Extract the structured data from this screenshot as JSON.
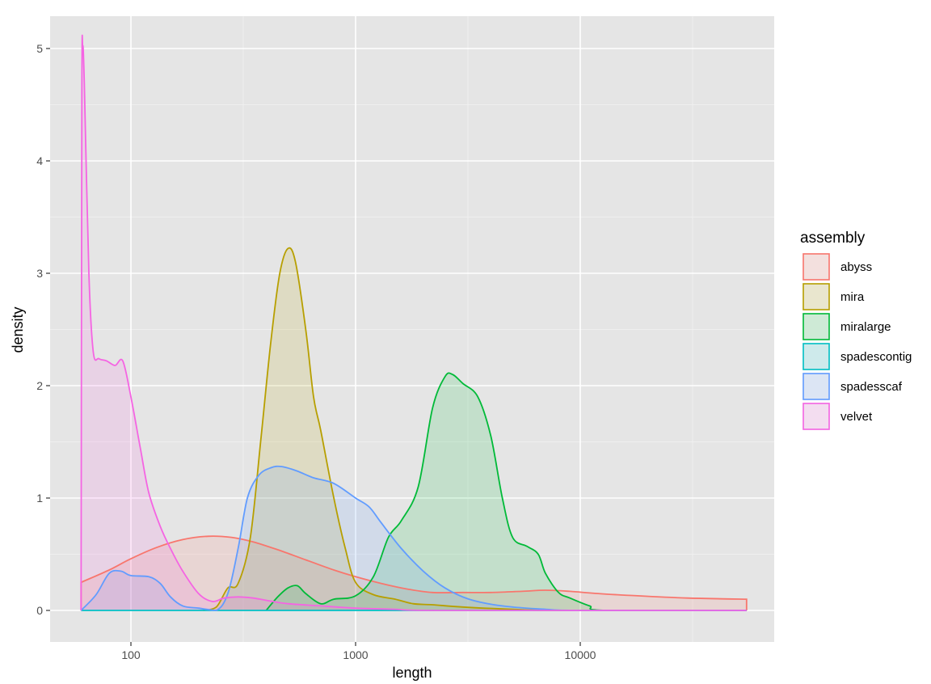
{
  "chart_data": {
    "type": "area",
    "xlabel": "length",
    "ylabel": "density",
    "x_scale": "log10",
    "xlim": [
      60,
      55000
    ],
    "ylim": [
      0,
      5
    ],
    "x_ticks": [
      {
        "value": 100,
        "label": "100"
      },
      {
        "value": 1000,
        "label": "1000"
      },
      {
        "value": 10000,
        "label": "10000"
      }
    ],
    "y_ticks": [
      {
        "value": 0,
        "label": "0"
      },
      {
        "value": 1,
        "label": "1"
      },
      {
        "value": 2,
        "label": "2"
      },
      {
        "value": 3,
        "label": "3"
      },
      {
        "value": 4,
        "label": "4"
      },
      {
        "value": 5,
        "label": "5"
      }
    ],
    "grid": true,
    "panel_background": "#e5e5e5",
    "legend": {
      "title": "assembly",
      "position": "right"
    },
    "series": [
      {
        "name": "abyss",
        "color": "#f8766d",
        "points": [
          [
            60,
            0.25
          ],
          [
            80,
            0.36
          ],
          [
            100,
            0.46
          ],
          [
            130,
            0.56
          ],
          [
            170,
            0.63
          ],
          [
            220,
            0.66
          ],
          [
            280,
            0.65
          ],
          [
            350,
            0.61
          ],
          [
            450,
            0.54
          ],
          [
            600,
            0.45
          ],
          [
            800,
            0.36
          ],
          [
            1000,
            0.3
          ],
          [
            1300,
            0.24
          ],
          [
            1700,
            0.19
          ],
          [
            2200,
            0.16
          ],
          [
            3000,
            0.16
          ],
          [
            4000,
            0.16
          ],
          [
            5500,
            0.17
          ],
          [
            7000,
            0.18
          ],
          [
            9000,
            0.17
          ],
          [
            12000,
            0.15
          ],
          [
            18000,
            0.13
          ],
          [
            30000,
            0.11
          ],
          [
            55000,
            0.1
          ]
        ]
      },
      {
        "name": "mira",
        "color": "#b79f00",
        "points": [
          [
            210,
            0.0
          ],
          [
            240,
            0.03
          ],
          [
            270,
            0.2
          ],
          [
            300,
            0.24
          ],
          [
            340,
            0.65
          ],
          [
            380,
            1.55
          ],
          [
            420,
            2.4
          ],
          [
            460,
            3.0
          ],
          [
            500,
            3.22
          ],
          [
            540,
            3.1
          ],
          [
            600,
            2.5
          ],
          [
            650,
            1.9
          ],
          [
            700,
            1.6
          ],
          [
            800,
            1.0
          ],
          [
            900,
            0.55
          ],
          [
            1000,
            0.25
          ],
          [
            1200,
            0.14
          ],
          [
            1500,
            0.1
          ],
          [
            1800,
            0.06
          ],
          [
            2200,
            0.05
          ],
          [
            3000,
            0.03
          ],
          [
            5000,
            0.01
          ],
          [
            8000,
            0.0
          ],
          [
            55000,
            0.0
          ]
        ]
      },
      {
        "name": "miralarge",
        "color": "#00ba38",
        "points": [
          [
            400,
            0.0
          ],
          [
            450,
            0.12
          ],
          [
            500,
            0.2
          ],
          [
            550,
            0.22
          ],
          [
            600,
            0.15
          ],
          [
            700,
            0.06
          ],
          [
            800,
            0.1
          ],
          [
            1000,
            0.13
          ],
          [
            1200,
            0.3
          ],
          [
            1400,
            0.65
          ],
          [
            1600,
            0.8
          ],
          [
            1900,
            1.1
          ],
          [
            2200,
            1.8
          ],
          [
            2500,
            2.08
          ],
          [
            2700,
            2.1
          ],
          [
            3000,
            2.02
          ],
          [
            3500,
            1.9
          ],
          [
            4000,
            1.55
          ],
          [
            4500,
            1.0
          ],
          [
            5000,
            0.65
          ],
          [
            5800,
            0.57
          ],
          [
            6500,
            0.5
          ],
          [
            7000,
            0.33
          ],
          [
            8000,
            0.16
          ],
          [
            9000,
            0.11
          ],
          [
            11000,
            0.04
          ],
          [
            13000,
            0.0
          ],
          [
            55000,
            0.0
          ]
        ]
      },
      {
        "name": "spadescontig",
        "color": "#00bfc4",
        "points": [
          [
            60,
            0.0
          ],
          [
            55000,
            0.0
          ]
        ]
      },
      {
        "name": "spadesscaf",
        "color": "#619cff",
        "points": [
          [
            60,
            0.0
          ],
          [
            70,
            0.14
          ],
          [
            80,
            0.33
          ],
          [
            90,
            0.35
          ],
          [
            100,
            0.31
          ],
          [
            120,
            0.3
          ],
          [
            135,
            0.24
          ],
          [
            150,
            0.12
          ],
          [
            170,
            0.04
          ],
          [
            200,
            0.02
          ],
          [
            240,
            0.0
          ],
          [
            270,
            0.15
          ],
          [
            300,
            0.55
          ],
          [
            330,
            1.0
          ],
          [
            370,
            1.2
          ],
          [
            420,
            1.27
          ],
          [
            470,
            1.28
          ],
          [
            550,
            1.24
          ],
          [
            650,
            1.18
          ],
          [
            800,
            1.13
          ],
          [
            1000,
            1.0
          ],
          [
            1150,
            0.92
          ],
          [
            1300,
            0.78
          ],
          [
            1600,
            0.55
          ],
          [
            2000,
            0.35
          ],
          [
            2500,
            0.2
          ],
          [
            3200,
            0.1
          ],
          [
            4500,
            0.04
          ],
          [
            7000,
            0.01
          ],
          [
            10000,
            0.0
          ],
          [
            55000,
            0.0
          ]
        ]
      },
      {
        "name": "velvet",
        "color": "#f564e3",
        "points": [
          [
            60,
            0.0
          ],
          [
            60.5,
            4.6
          ],
          [
            61,
            5.02
          ],
          [
            62,
            4.7
          ],
          [
            65,
            3.0
          ],
          [
            68,
            2.3
          ],
          [
            72,
            2.24
          ],
          [
            78,
            2.22
          ],
          [
            85,
            2.18
          ],
          [
            92,
            2.22
          ],
          [
            100,
            1.9
          ],
          [
            110,
            1.45
          ],
          [
            120,
            1.05
          ],
          [
            135,
            0.75
          ],
          [
            150,
            0.55
          ],
          [
            170,
            0.35
          ],
          [
            200,
            0.15
          ],
          [
            230,
            0.08
          ],
          [
            260,
            0.11
          ],
          [
            300,
            0.12
          ],
          [
            350,
            0.11
          ],
          [
            400,
            0.09
          ],
          [
            500,
            0.06
          ],
          [
            700,
            0.04
          ],
          [
            1000,
            0.02
          ],
          [
            1500,
            0.01
          ],
          [
            2500,
            0.0
          ],
          [
            55000,
            0.0
          ]
        ]
      }
    ]
  }
}
